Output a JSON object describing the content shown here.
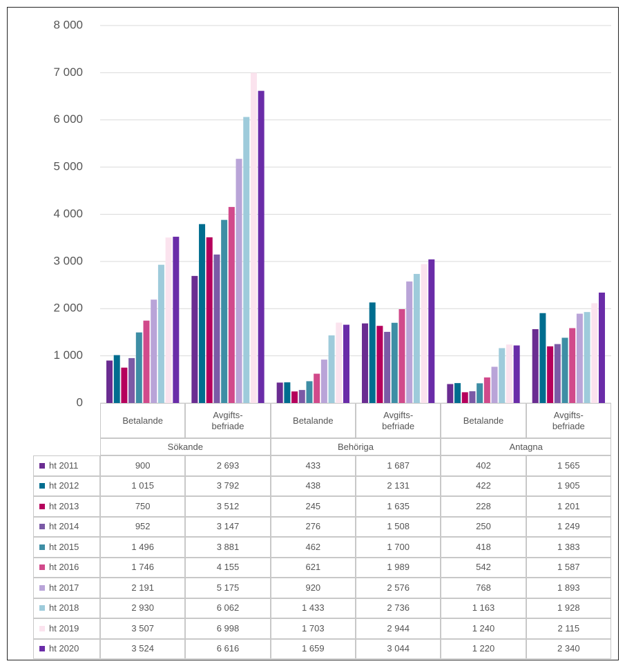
{
  "chart_data": {
    "type": "bar",
    "categories": [
      "Betalande",
      "Avgifts-befriade",
      "Betalande",
      "Avgifts-befriade",
      "Betalande",
      "Avgifts-befriade"
    ],
    "groups": [
      "Sökande",
      "Behöriga",
      "Antagna"
    ],
    "ylim": [
      0,
      8000
    ],
    "yticks": [
      {
        "value": 0,
        "label": "0"
      },
      {
        "value": 1000,
        "label": "1 000"
      },
      {
        "value": 2000,
        "label": "2 000"
      },
      {
        "value": 3000,
        "label": "3 000"
      },
      {
        "value": 4000,
        "label": "4 000"
      },
      {
        "value": 5000,
        "label": "5 000"
      },
      {
        "value": 6000,
        "label": "6 000"
      },
      {
        "value": 7000,
        "label": "7 000"
      },
      {
        "value": 8000,
        "label": "8 000"
      }
    ],
    "grid": true,
    "series": [
      {
        "name": "ht 2011",
        "color": "#6a2c91",
        "values": [
          900,
          2693,
          433,
          1687,
          402,
          1565
        ],
        "value_labels": [
          "900",
          "2 693",
          "433",
          "1 687",
          "402",
          "1 565"
        ]
      },
      {
        "name": "ht 2012",
        "color": "#006d8f",
        "values": [
          1015,
          3792,
          438,
          2131,
          422,
          1905
        ],
        "value_labels": [
          "1 015",
          "3 792",
          "438",
          "2 131",
          "422",
          "1 905"
        ]
      },
      {
        "name": "ht 2013",
        "color": "#b5005c",
        "values": [
          750,
          3512,
          245,
          1635,
          228,
          1201
        ],
        "value_labels": [
          "750",
          "3 512",
          "245",
          "1 635",
          "228",
          "1 201"
        ]
      },
      {
        "name": "ht 2014",
        "color": "#7b5aa6",
        "values": [
          952,
          3147,
          276,
          1508,
          250,
          1249
        ],
        "value_labels": [
          "952",
          "3 147",
          "276",
          "1 508",
          "250",
          "1 249"
        ]
      },
      {
        "name": "ht 2015",
        "color": "#3e8ea5",
        "values": [
          1496,
          3881,
          462,
          1700,
          418,
          1383
        ],
        "value_labels": [
          "1 496",
          "3 881",
          "462",
          "1 700",
          "418",
          "1 383"
        ]
      },
      {
        "name": "ht 2016",
        "color": "#d14a8b",
        "values": [
          1746,
          4155,
          621,
          1989,
          542,
          1587
        ],
        "value_labels": [
          "1 746",
          "4 155",
          "621",
          "1 989",
          "542",
          "1 587"
        ]
      },
      {
        "name": "ht 2017",
        "color": "#b9a4d8",
        "values": [
          2191,
          5175,
          920,
          2576,
          768,
          1893
        ],
        "value_labels": [
          "2 191",
          "5 175",
          "920",
          "2 576",
          "768",
          "1 893"
        ]
      },
      {
        "name": "ht 2018",
        "color": "#9ecbdb",
        "values": [
          2930,
          6062,
          1433,
          2736,
          1163,
          1928
        ],
        "value_labels": [
          "2 930",
          "6 062",
          "1 433",
          "2 736",
          "1 163",
          "1 928"
        ]
      },
      {
        "name": "ht 2019",
        "color": "#fbe3ee",
        "values": [
          3507,
          6998,
          1703,
          2944,
          1240,
          2115
        ],
        "value_labels": [
          "3 507",
          "6 998",
          "1 703",
          "2 944",
          "1 240",
          "2 115"
        ]
      },
      {
        "name": "ht 2020",
        "color": "#6a2ca8",
        "values": [
          3524,
          6616,
          1659,
          3044,
          1220,
          2340
        ],
        "value_labels": [
          "3 524",
          "6 616",
          "1 659",
          "3 044",
          "1 220",
          "2 340"
        ]
      }
    ]
  }
}
